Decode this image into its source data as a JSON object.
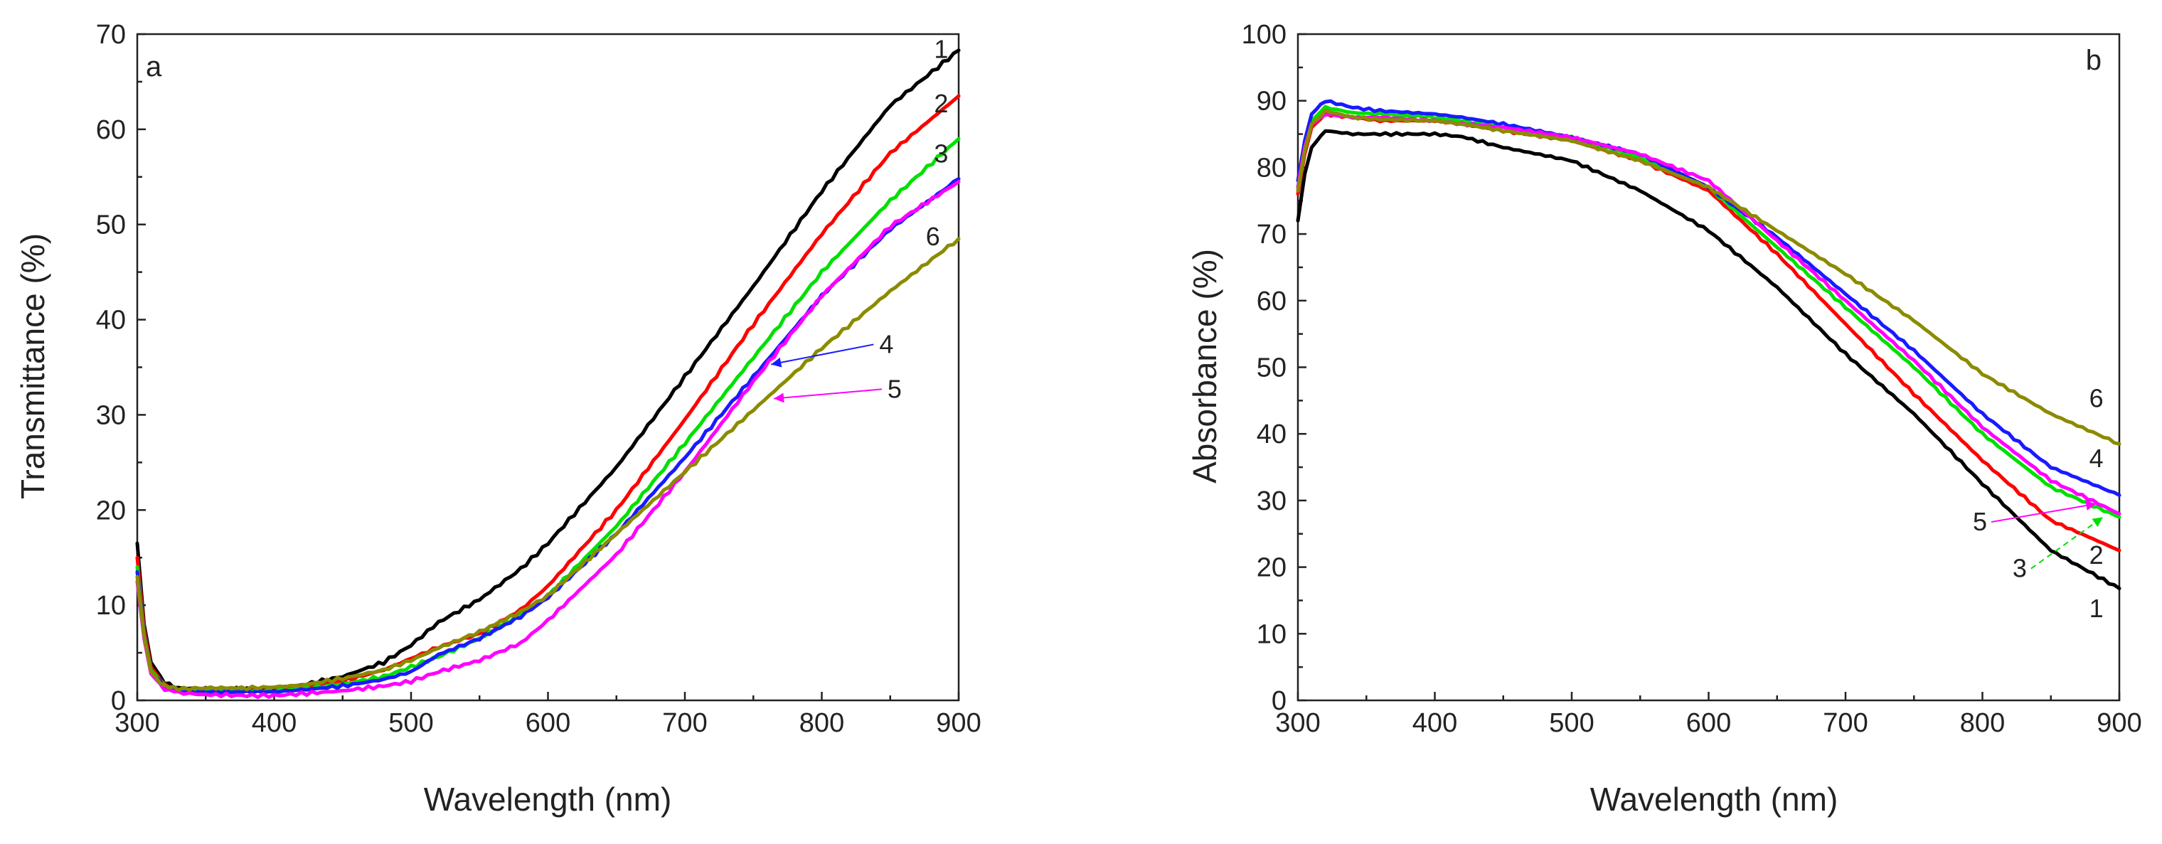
{
  "chart_data": [
    {
      "panel": "a",
      "type": "line",
      "xlabel": "Wavelength (nm)",
      "ylabel": "Transmittance (%)",
      "xlim": [
        300,
        900
      ],
      "ylim": [
        0,
        70
      ],
      "xticks": [
        300,
        400,
        500,
        600,
        700,
        800,
        900
      ],
      "yticks": [
        0,
        10,
        20,
        30,
        40,
        50,
        60,
        70
      ],
      "grid": false,
      "series": [
        {
          "name": "1",
          "color": "#000000",
          "x": [
            300,
            305,
            310,
            320,
            330,
            350,
            380,
            400,
            420,
            450,
            480,
            500,
            520,
            550,
            580,
            600,
            650,
            700,
            750,
            800,
            850,
            900
          ],
          "y": [
            16.5,
            8,
            4,
            1.8,
            1.3,
            1.2,
            1.2,
            1.2,
            1.6,
            2.5,
            4,
            5.8,
            8.2,
            10.6,
            13.8,
            16.5,
            24.5,
            34,
            43.5,
            53.5,
            62.5,
            68.3
          ]
        },
        {
          "name": "2",
          "color": "#ff0000",
          "x": [
            300,
            305,
            310,
            320,
            330,
            350,
            380,
            400,
            420,
            450,
            480,
            500,
            520,
            550,
            580,
            600,
            650,
            700,
            750,
            800,
            850,
            900
          ],
          "y": [
            15,
            7.5,
            3.5,
            1.6,
            1.1,
            1,
            1,
            1,
            1.3,
            2,
            3.2,
            4.4,
            5.6,
            7,
            9.5,
            12,
            20,
            29.5,
            39.5,
            49,
            57.5,
            63.5
          ]
        },
        {
          "name": "3",
          "color": "#00e000",
          "x": [
            300,
            305,
            310,
            320,
            330,
            350,
            380,
            400,
            420,
            450,
            480,
            500,
            520,
            550,
            580,
            600,
            650,
            700,
            750,
            800,
            850,
            900
          ],
          "y": [
            14,
            7,
            3.2,
            1.5,
            1.1,
            1,
            1,
            1,
            1.2,
            1.7,
            2.5,
            3.5,
            4.6,
            6.5,
            9,
            11,
            18.3,
            27,
            36,
            45,
            52.5,
            59
          ]
        },
        {
          "name": "4",
          "color": "#1a1aff",
          "x": [
            300,
            305,
            310,
            320,
            330,
            350,
            380,
            400,
            420,
            450,
            480,
            500,
            520,
            550,
            580,
            600,
            650,
            700,
            750,
            800,
            850,
            900
          ],
          "y": [
            13.5,
            7,
            3,
            1.4,
            1,
            0.9,
            0.9,
            0.9,
            1.1,
            1.5,
            2.2,
            3,
            4.8,
            6.5,
            8.8,
            10.8,
            17.5,
            25.5,
            34,
            42.5,
            49.5,
            54.8
          ]
        },
        {
          "name": "5",
          "color": "#ff00ff",
          "x": [
            300,
            305,
            310,
            320,
            330,
            350,
            380,
            400,
            420,
            450,
            480,
            500,
            520,
            550,
            580,
            600,
            650,
            700,
            750,
            800,
            850,
            900
          ],
          "y": [
            12.5,
            6.5,
            2.8,
            1.2,
            0.8,
            0.6,
            0.5,
            0.5,
            0.7,
            1,
            1.5,
            2,
            3,
            4.2,
            6,
            8.4,
            15.3,
            24,
            33.5,
            42.5,
            49.8,
            54.5
          ]
        },
        {
          "name": "6",
          "color": "#8b8b00",
          "x": [
            300,
            305,
            310,
            320,
            330,
            350,
            380,
            400,
            420,
            450,
            480,
            500,
            520,
            550,
            580,
            600,
            650,
            700,
            750,
            800,
            850,
            900
          ],
          "y": [
            13,
            6.8,
            3,
            1.5,
            1.2,
            1.3,
            1.3,
            1.4,
            1.6,
            2.3,
            3.2,
            4.2,
            5.5,
            7.2,
            9.3,
            11,
            17.5,
            24,
            30.5,
            37,
            43,
            48.5
          ]
        }
      ],
      "curve_labels": [
        {
          "text": "1",
          "x": 882,
          "y": 67.5
        },
        {
          "text": "2",
          "x": 882,
          "y": 61.8
        },
        {
          "text": "3",
          "x": 882,
          "y": 56.5
        },
        {
          "text": "6",
          "x": 876,
          "y": 47.8
        },
        {
          "text": "4",
          "x": 842,
          "y": 36.5,
          "arrow_to": [
            763,
            35.3
          ],
          "color": "#1a1aff"
        },
        {
          "text": "5",
          "x": 848,
          "y": 31.8,
          "arrow_to": [
            765,
            31.7
          ],
          "color": "#ff00ff"
        }
      ]
    },
    {
      "panel": "b",
      "type": "line",
      "xlabel": "Wavelength (nm)",
      "ylabel": "Absorbance (%)",
      "xlim": [
        300,
        900
      ],
      "ylim": [
        0,
        100
      ],
      "xticks": [
        300,
        400,
        500,
        600,
        700,
        800,
        900
      ],
      "yticks": [
        0,
        10,
        20,
        30,
        40,
        50,
        60,
        70,
        80,
        90,
        100
      ],
      "grid": false,
      "series": [
        {
          "name": "1",
          "color": "#000000",
          "x": [
            300,
            305,
            310,
            320,
            340,
            360,
            400,
            420,
            450,
            500,
            550,
            600,
            650,
            700,
            750,
            800,
            850,
            900
          ],
          "y": [
            72,
            79,
            83,
            85.5,
            85,
            85,
            85,
            84.6,
            83,
            81,
            76.5,
            70.5,
            62,
            52,
            43,
            32.5,
            22.5,
            16.8
          ]
        },
        {
          "name": "2",
          "color": "#ff0000",
          "x": [
            300,
            305,
            310,
            320,
            340,
            360,
            400,
            420,
            450,
            500,
            550,
            600,
            650,
            700,
            750,
            800,
            850,
            900
          ],
          "y": [
            76,
            82,
            86,
            88,
            87.5,
            87,
            87,
            86.5,
            85.5,
            84,
            81,
            76.5,
            67,
            56.5,
            46,
            36,
            27,
            22.5
          ]
        },
        {
          "name": "3",
          "color": "#00e000",
          "x": [
            300,
            305,
            310,
            320,
            340,
            360,
            400,
            420,
            450,
            500,
            550,
            600,
            650,
            700,
            750,
            800,
            850,
            900
          ],
          "y": [
            77,
            83,
            87,
            89,
            88.2,
            88,
            87.5,
            87,
            86,
            84.5,
            81.5,
            77,
            68,
            59,
            50,
            40,
            32,
            27.5
          ]
        },
        {
          "name": "4",
          "color": "#1a1aff",
          "x": [
            300,
            305,
            310,
            320,
            340,
            360,
            400,
            420,
            450,
            500,
            550,
            600,
            650,
            700,
            750,
            800,
            850,
            900
          ],
          "y": [
            78,
            84,
            88,
            90,
            89,
            88.5,
            88,
            87.5,
            86.5,
            84.5,
            82,
            77,
            69.5,
            61,
            52.5,
            43,
            35,
            30.8
          ]
        },
        {
          "name": "5",
          "color": "#ff00ff",
          "x": [
            300,
            305,
            310,
            320,
            340,
            360,
            400,
            420,
            450,
            500,
            550,
            600,
            650,
            700,
            750,
            800,
            850,
            900
          ],
          "y": [
            77,
            83,
            86.5,
            88,
            87.5,
            87.5,
            87,
            86.5,
            86,
            84.5,
            82,
            78,
            69,
            60,
            51,
            41,
            33,
            28
          ]
        },
        {
          "name": "6",
          "color": "#8b8b00",
          "x": [
            300,
            305,
            310,
            320,
            340,
            360,
            400,
            420,
            450,
            500,
            550,
            600,
            650,
            700,
            750,
            800,
            850,
            900
          ],
          "y": [
            76.5,
            82.5,
            86.5,
            88.5,
            87.5,
            87.2,
            87,
            86.5,
            85.5,
            84,
            81,
            77,
            70.5,
            64,
            57,
            49,
            43,
            38.5
          ]
        }
      ],
      "curve_labels": [
        {
          "text": "6",
          "x": 878,
          "y": 44
        },
        {
          "text": "4",
          "x": 878,
          "y": 35
        },
        {
          "text": "2",
          "x": 878,
          "y": 20.5
        },
        {
          "text": "1",
          "x": 878,
          "y": 12.5
        },
        {
          "text": "5",
          "x": 793,
          "y": 25.5,
          "arrow_to": [
            883,
            29.5
          ],
          "color": "#ff00ff"
        },
        {
          "text": "3",
          "x": 822,
          "y": 18.5,
          "arrow_to": [
            888,
            27.5
          ],
          "color": "#00e000"
        }
      ]
    }
  ]
}
